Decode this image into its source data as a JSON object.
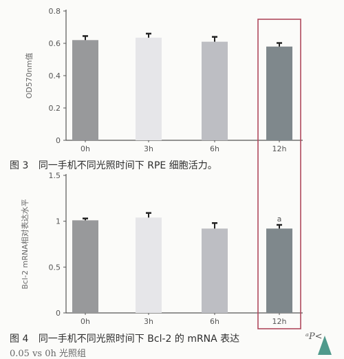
{
  "chart_data": [
    {
      "type": "bar",
      "categories": [
        "0h",
        "3h",
        "6h",
        "12h"
      ],
      "values": [
        0.62,
        0.635,
        0.61,
        0.58
      ],
      "errors": [
        0.025,
        0.025,
        0.03,
        0.022
      ],
      "bar_colors": [
        "#98999b",
        "#e6e6e9",
        "#bdbec3",
        "#7f888c"
      ],
      "ylabel": "OD570nm值",
      "ylim": [
        0,
        0.8
      ],
      "yticks": [
        "0",
        "0.2",
        "0.4",
        "0.6",
        "0.8"
      ],
      "annotations": [],
      "highlight_category": "12h"
    },
    {
      "type": "bar",
      "categories": [
        "0h",
        "3h",
        "6h",
        "12h"
      ],
      "values": [
        1.01,
        1.04,
        0.92,
        0.92
      ],
      "errors": [
        0.02,
        0.05,
        0.06,
        0.04
      ],
      "bar_colors": [
        "#98999b",
        "#e6e6e9",
        "#bdbec3",
        "#7f888c"
      ],
      "ylabel": "Bcl-2 mRNA相对表达水平",
      "ylim": [
        0,
        1.5
      ],
      "yticks": [
        "0",
        "0.5",
        "1",
        "1.5"
      ],
      "annotations": [
        {
          "category": "12h",
          "text": "a"
        }
      ],
      "highlight_category": "12h"
    }
  ],
  "captions": {
    "fig3_label": "图 3",
    "fig3_text": "同一手机不同光照时间下 RPE 细胞活力。",
    "fig4_label": "图 4",
    "fig4_text": "同一手机不同光照时间下 Bcl-2 的 mRNA 表达",
    "fig4_note": "ᵃP<",
    "fig4_line2": "0.05 vs 0h 光照组"
  },
  "highlight_color": "#b0485c",
  "arrow_color": "#4f9a8c"
}
